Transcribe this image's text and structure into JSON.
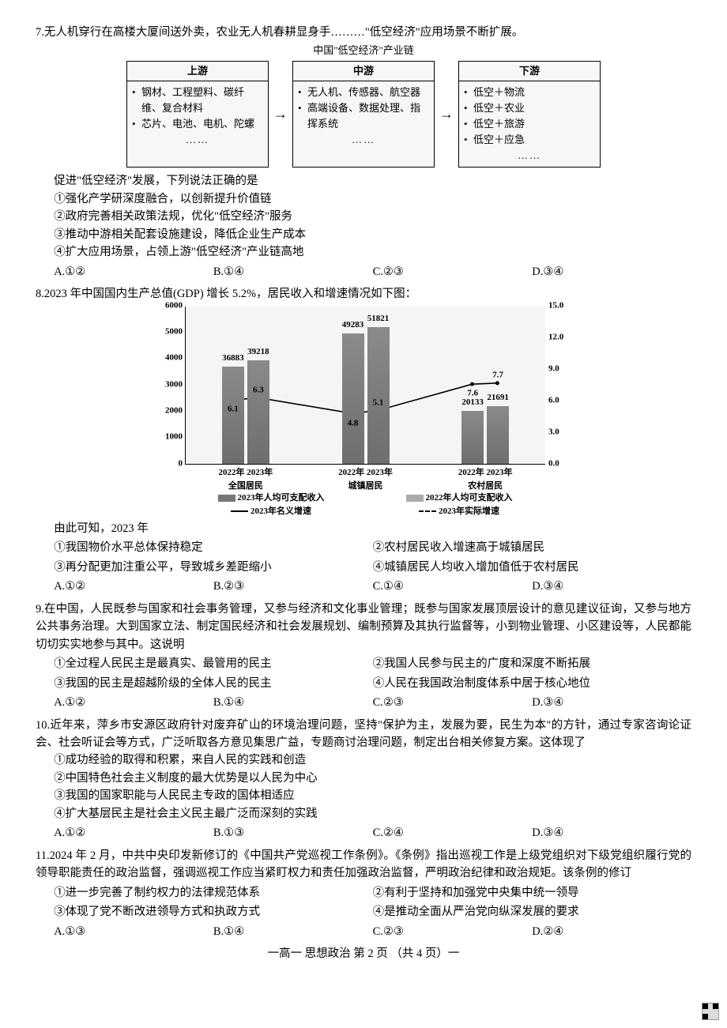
{
  "q7": {
    "number": "7.",
    "stem": "无人机穿行在高楼大厦间送外卖，农业无人机春耕显身手………\"低空经济\"应用场景不断扩展。",
    "diagram_title": "中国\"低空经济\"产业链",
    "chain": {
      "boxes": [
        {
          "head": "上游",
          "items": [
            "钢材、工程塑料、碳纤维、复合材料",
            "芯片、电池、电机、陀螺"
          ],
          "dots": "……"
        },
        {
          "head": "中游",
          "items": [
            "无人机、传感器、航空器",
            "高端设备、数据处理、指挥系统"
          ],
          "dots": "……"
        },
        {
          "head": "下游",
          "items": [
            "低空＋物流",
            "低空＋农业",
            "低空＋旅游",
            "低空＋应急"
          ],
          "dots": "……"
        }
      ],
      "arrow": "→"
    },
    "sub_stem": "促进\"低空经济\"发展，下列说法正确的是",
    "statements": [
      "①强化产学研深度融合，以创新提升价值链",
      "②政府完善相关政策法规，优化\"低空经济\"服务",
      "③推动中游相关配套设施建设，降低企业生产成本",
      "④扩大应用场景，占领上游\"低空经济\"产业链高地"
    ],
    "options": {
      "A": "A.①②",
      "B": "B.①④",
      "C": "C.②③",
      "D": "D.③④"
    }
  },
  "q8": {
    "number": "8.",
    "stem": "2023 年中国国内生产总值(GDP) 增长 5.2%，居民收入和增速情况如下图：",
    "chart": {
      "left_axis": {
        "min": 0,
        "max": 6000,
        "step": 1000
      },
      "right_axis": {
        "min": 0.0,
        "max": 15.0,
        "step": 3.0
      },
      "groups": [
        {
          "label_top": "2022年 2023年",
          "label_bot": "全国居民",
          "bar1": 36883,
          "bar2": 39218,
          "rate1": 6.1,
          "rate2": 6.3
        },
        {
          "label_top": "2022年 2023年",
          "label_bot": "城镇居民",
          "bar1": 49283,
          "bar2": 51821,
          "rate1": 4.8,
          "rate2": 5.1
        },
        {
          "label_top": "2022年 2023年",
          "label_bot": "农村居民",
          "bar1": 20133,
          "bar2": 21691,
          "rate1": 7.6,
          "rate2": 7.7
        }
      ],
      "bar_scale_max": 60000,
      "legend": {
        "l1": "2023年人均可支配收入",
        "l2": "2022年人均可支配收入",
        "l3": "2023年名义增速",
        "l4": "2023年实际增速"
      },
      "colors": {
        "bar": "#7a7a78",
        "grid": "#bcbcba",
        "bg": "#f5f5f3",
        "line1": "#000000",
        "line2": "#000000"
      }
    },
    "sub_stem": "由此可知，2023 年",
    "statements_two_col": [
      [
        "①我国物价水平总体保持稳定",
        "②农村居民收入增速高于城镇居民"
      ],
      [
        "③再分配更加注重公平，导致城乡差距缩小",
        "④城镇居民人均收入增加值低于农村居民"
      ]
    ],
    "options": {
      "A": "A.①②",
      "B": "B.②③",
      "C": "C.①④",
      "D": "D.③④"
    }
  },
  "q9": {
    "number": "9.",
    "stem": "在中国，人民既参与国家和社会事务管理，又参与经济和文化事业管理；既参与国家发展顶层设计的意见建议征询，又参与地方公共事务治理。大到国家立法、制定国民经济和社会发展规划、编制预算及其执行监督等，小到物业管理、小区建设等，人民都能切切实实地参与其中。这说明",
    "statements_two_col": [
      [
        "①全过程人民民主是最真实、最管用的民主",
        "②我国人民参与民主的广度和深度不断拓展"
      ],
      [
        "③我国的民主是超越阶级的全体人民的民主",
        "④人民在我国政治制度体系中居于核心地位"
      ]
    ],
    "options": {
      "A": "A.①②",
      "B": "B.①④",
      "C": "C.②③",
      "D": "D.③④"
    }
  },
  "q10": {
    "number": "10.",
    "stem": "近年来，萍乡市安源区政府针对废弃矿山的环境治理问题，坚持\"保护为主，发展为要，民生为本\"的方针，通过专家咨询论证会、社会听证会等方式，广泛听取各方意见集思广益，专题商讨治理问题，制定出台相关修复方案。这体现了",
    "statements": [
      "①成功经验的取得和积累，来自人民的实践和创造",
      "②中国特色社会主义制度的最大优势是以人民为中心",
      "③我国的国家职能与人民民主专政的国体相适应",
      "④扩大基层民主是社会主义民主最广泛而深刻的实践"
    ],
    "options": {
      "A": "A.①②",
      "B": "B.①③",
      "C": "C.②④",
      "D": "D.③④"
    }
  },
  "q11": {
    "number": "11.",
    "stem": "2024 年 2 月，中共中央印发新修订的《中国共产党巡视工作条例》。《条例》指出巡视工作是上级党组织对下级党组织履行党的领导职能责任的政治监督，强调巡视工作应当紧盯权力和责任加强政治监督，严明政治纪律和政治规矩。该条例的修订",
    "statements_two_col": [
      [
        "①进一步完善了制约权力的法律规范体系",
        "②有利于坚持和加强党中央集中统一领导"
      ],
      [
        "③体现了党不断改进领导方式和执政方式",
        "④是推动全面从严治党向纵深发展的要求"
      ]
    ],
    "options": {
      "A": "A.①③",
      "B": "B.①④",
      "C": "C.②③",
      "D": "D.②④"
    }
  },
  "footer": "一高一  思想政治  第 2 页 （共 4 页）一"
}
